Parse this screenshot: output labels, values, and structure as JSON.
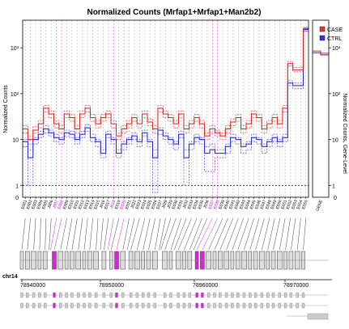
{
  "chart_data": {
    "type": "line",
    "title": "Normalized Counts (Mrfap1+Mrfap1+Man2b2)",
    "ylabel": "Normalized Counts",
    "ylabel_right": "Normalized Counts, Gene-Level",
    "yscale": "log",
    "ylim": [
      0.55,
      4000
    ],
    "yticks_left": [
      {
        "v": 1,
        "label": "1"
      },
      {
        "v": 10,
        "label": "10"
      },
      {
        "v": 100,
        "label": "10²"
      },
      {
        "v": 1000,
        "label": "10³"
      }
    ],
    "yticks_right": [
      {
        "v": 1,
        "label": "1"
      },
      {
        "v": 10,
        "label": "10"
      },
      {
        "v": 100,
        "label": "10²"
      },
      {
        "v": 1000,
        "label": "10³"
      }
    ],
    "bottom_tick": "0",
    "features": [
      "E001",
      "E002",
      "E003",
      "E004",
      "E005",
      "J006",
      "J007",
      "E008",
      "E009",
      "E010",
      "E011",
      "E012",
      "E013",
      "E014",
      "E015",
      "J016",
      "E017",
      "J018",
      "E019",
      "E020",
      "E021",
      "J022",
      "E023",
      "E024",
      "E025",
      "E026",
      "E027",
      "J028",
      "J029",
      "E030",
      "E031",
      "J032",
      "E033",
      "E034",
      "E035",
      "J036",
      "E037",
      "E038",
      "E039",
      "E040",
      "E041",
      "E042",
      "E043",
      "E044",
      "E045",
      "E046",
      "E047",
      "E048",
      "E049",
      "E050",
      "E051",
      "E052",
      "E053",
      "E054",
      "E055"
    ],
    "gene_label": "GENE",
    "legend": [
      {
        "name": "CASE",
        "color": "#ee3333"
      },
      {
        "name": "CTRL",
        "color": "#3333ee"
      }
    ],
    "case_samples": [
      [
        14,
        8,
        14,
        18,
        40,
        30,
        18,
        14,
        30,
        25,
        14,
        30,
        40,
        25,
        18,
        25,
        30,
        18,
        10,
        14,
        18,
        25,
        18,
        30,
        20,
        14,
        40,
        30,
        25,
        18,
        30,
        14,
        18,
        25,
        18,
        10,
        14,
        12,
        10,
        14,
        20,
        25,
        14,
        18,
        30,
        25,
        14,
        18,
        25,
        18,
        40,
        400,
        300,
        300,
        2300
      ],
      [
        17,
        10,
        16,
        22,
        48,
        36,
        22,
        17,
        36,
        30,
        17,
        36,
        48,
        30,
        22,
        30,
        36,
        22,
        12,
        17,
        22,
        30,
        22,
        36,
        24,
        17,
        48,
        36,
        30,
        22,
        36,
        17,
        22,
        30,
        22,
        12,
        17,
        14,
        12,
        17,
        24,
        30,
        17,
        22,
        36,
        30,
        17,
        22,
        30,
        22,
        48,
        450,
        330,
        330,
        2600
      ],
      [
        20,
        12,
        19,
        26,
        55,
        42,
        26,
        20,
        42,
        35,
        20,
        42,
        55,
        35,
        26,
        35,
        42,
        26,
        14,
        20,
        26,
        35,
        26,
        42,
        28,
        20,
        55,
        42,
        35,
        26,
        42,
        20,
        26,
        35,
        26,
        14,
        20,
        16,
        14,
        20,
        28,
        35,
        20,
        26,
        42,
        35,
        20,
        26,
        35,
        26,
        55,
        500,
        370,
        370,
        2800
      ]
    ],
    "ctrl_samples": [
      [
        7,
        1,
        8,
        11,
        14,
        12,
        9,
        8,
        12,
        11,
        8,
        11,
        15,
        9,
        7,
        4,
        11,
        8,
        4,
        6,
        8,
        10,
        7,
        12,
        7,
        0.7,
        13,
        10,
        8,
        6,
        11,
        1,
        6,
        9,
        8,
        2,
        2,
        4,
        4,
        5,
        9,
        8,
        5,
        6,
        9,
        8,
        5,
        7,
        9,
        7,
        9,
        150,
        130,
        130,
        2300
      ],
      [
        9,
        4,
        10,
        13,
        17,
        14,
        11,
        10,
        14,
        13,
        10,
        13,
        18,
        11,
        9,
        5,
        13,
        10,
        5,
        8,
        10,
        12,
        9,
        14,
        9,
        4,
        16,
        12,
        10,
        8,
        13,
        4,
        8,
        11,
        10,
        5,
        6,
        5,
        5,
        7,
        11,
        10,
        7,
        8,
        11,
        10,
        7,
        9,
        11,
        9,
        11,
        170,
        150,
        150,
        2500
      ],
      [
        10,
        6,
        11,
        15,
        20,
        16,
        13,
        11,
        16,
        15,
        11,
        15,
        21,
        13,
        10,
        6,
        15,
        11,
        6,
        9,
        11,
        14,
        10,
        16,
        10,
        6,
        18,
        14,
        11,
        9,
        15,
        6,
        9,
        13,
        11,
        7,
        8,
        6,
        6,
        8,
        13,
        11,
        8,
        9,
        13,
        11,
        8,
        10,
        13,
        10,
        13,
        190,
        170,
        170,
        2700
      ]
    ],
    "case_mean": [
      17,
      10,
      16,
      22,
      48,
      36,
      22,
      17,
      36,
      30,
      17,
      36,
      48,
      30,
      22,
      30,
      36,
      22,
      12,
      17,
      22,
      30,
      22,
      36,
      24,
      17,
      48,
      36,
      30,
      22,
      36,
      17,
      22,
      30,
      22,
      12,
      17,
      14,
      12,
      17,
      24,
      30,
      17,
      22,
      36,
      30,
      17,
      22,
      30,
      22,
      48,
      450,
      330,
      330,
      2600
    ],
    "ctrl_mean": [
      9,
      4,
      10,
      13,
      17,
      14,
      11,
      10,
      14,
      13,
      10,
      13,
      18,
      11,
      9,
      5,
      13,
      10,
      5,
      8,
      10,
      12,
      9,
      14,
      9,
      4,
      16,
      12,
      10,
      8,
      13,
      4,
      8,
      11,
      10,
      5,
      6,
      5,
      5,
      7,
      11,
      10,
      7,
      8,
      11,
      10,
      7,
      9,
      11,
      9,
      11,
      170,
      150,
      150,
      2500
    ],
    "gene_case": [
      850,
      760
    ],
    "gene_ctrl": [
      780,
      700
    ],
    "highlighted_features": [
      6,
      7,
      17,
      19,
      36,
      37
    ],
    "genome": {
      "chrom_label": "chr14",
      "tick_labels": [
        "78940000",
        "78950000",
        "78960000",
        "78970000"
      ]
    }
  }
}
